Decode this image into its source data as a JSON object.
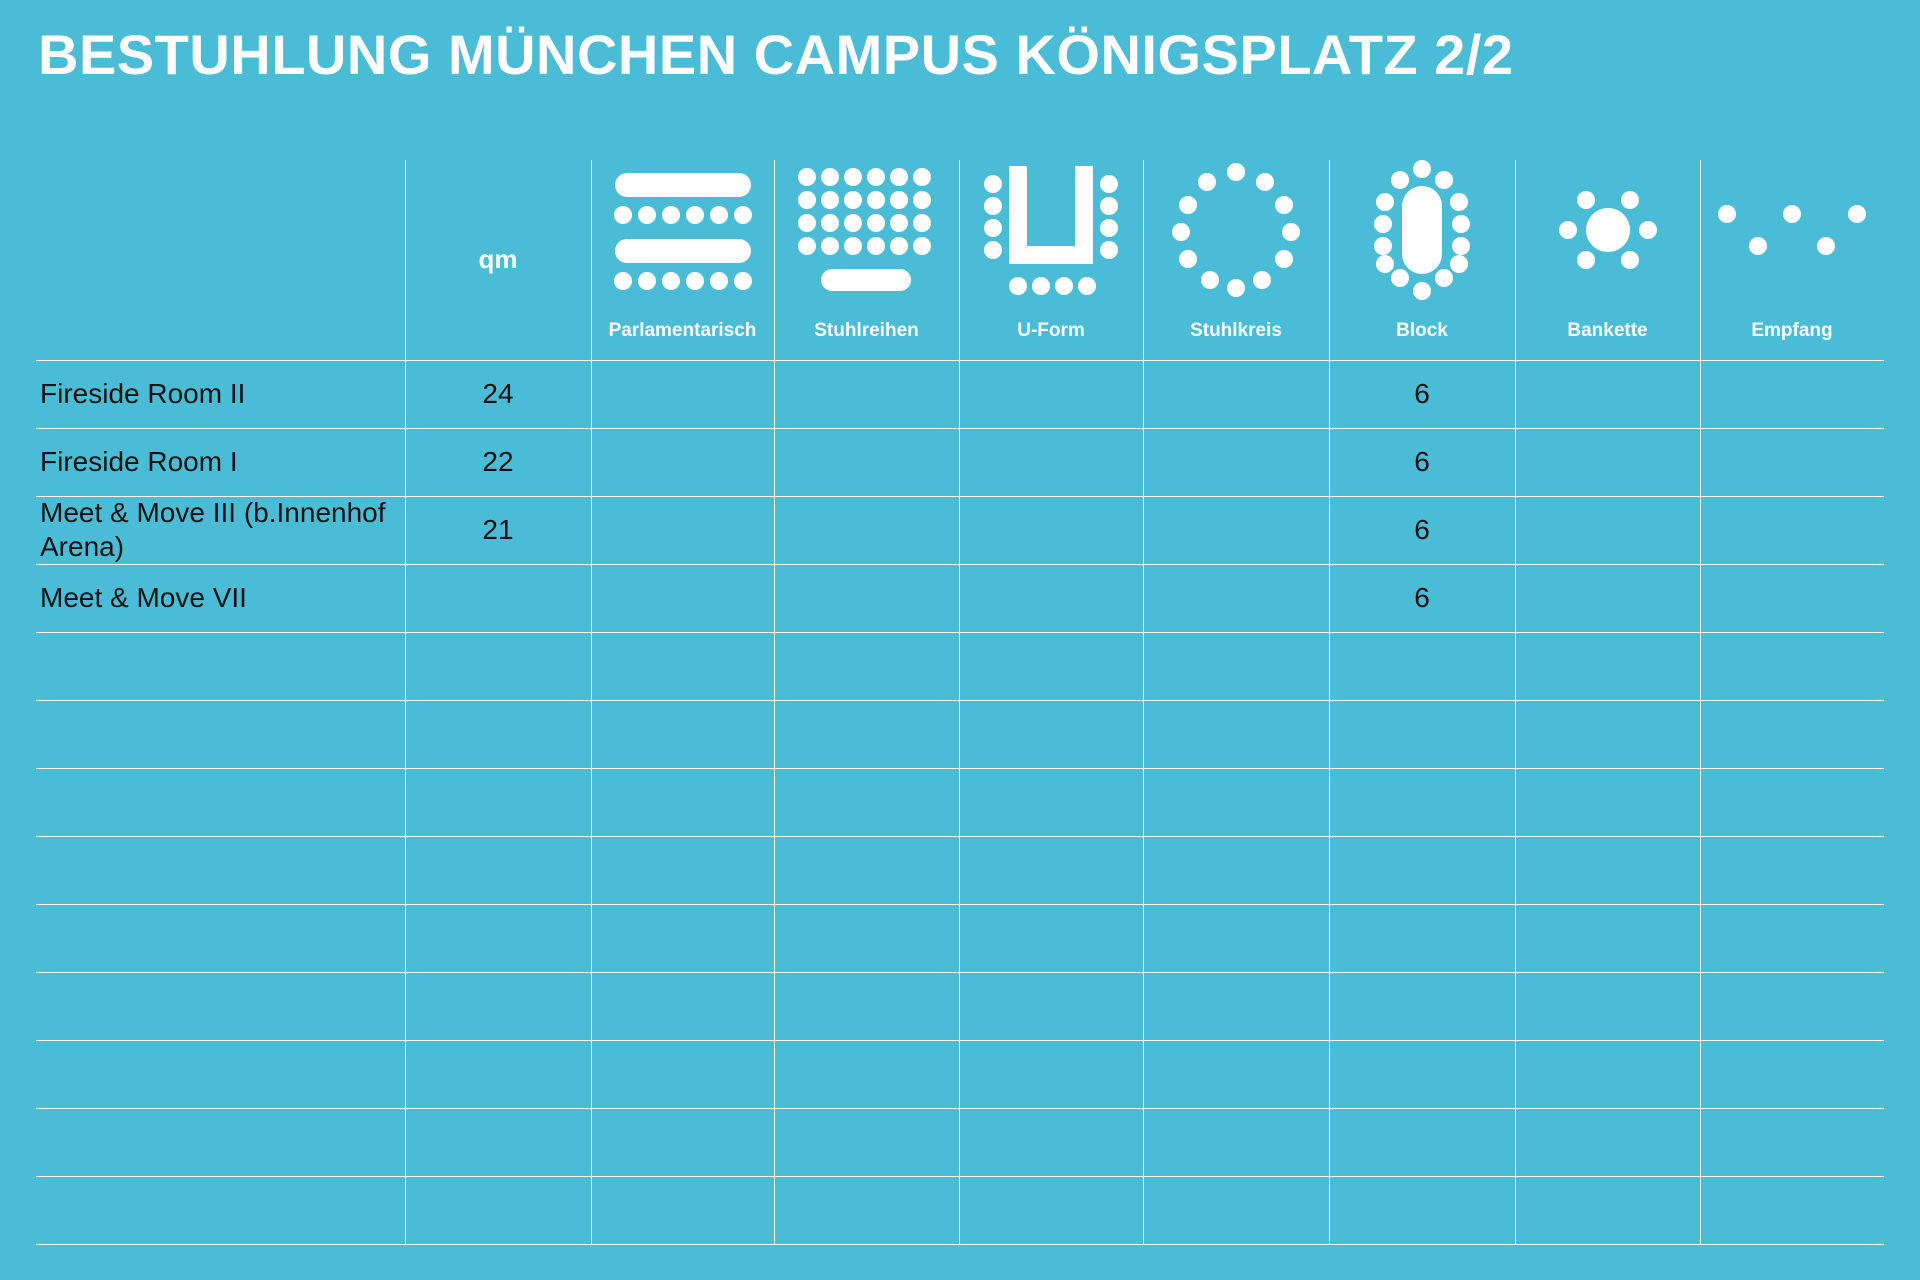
{
  "title": "BESTUHLUNG MÜNCHEN CAMPUS KÖNIGSPLATZ 2/2",
  "header": {
    "qm_label": "qm",
    "columns": [
      {
        "label": "Parlamentarisch",
        "icon": "parliament-seating-icon"
      },
      {
        "label": "Stuhlreihen",
        "icon": "chair-rows-icon"
      },
      {
        "label": "U-Form",
        "icon": "u-shape-icon"
      },
      {
        "label": "Stuhlkreis",
        "icon": "chair-circle-icon"
      },
      {
        "label": "Block",
        "icon": "block-table-icon"
      },
      {
        "label": "Bankette",
        "icon": "banquet-icon"
      },
      {
        "label": "Empfang",
        "icon": "reception-icon"
      }
    ]
  },
  "rows": [
    {
      "name": "Fireside Room II",
      "qm": "24",
      "values": [
        "",
        "",
        "",
        "",
        "6",
        "",
        ""
      ]
    },
    {
      "name": "Fireside Room I",
      "qm": "22",
      "values": [
        "",
        "",
        "",
        "",
        "6",
        "",
        ""
      ]
    },
    {
      "name": "Meet & Move III (b.Innenhof Arena)",
      "qm": "21",
      "values": [
        "",
        "",
        "",
        "",
        "6",
        "",
        ""
      ]
    },
    {
      "name": "Meet & Move VII",
      "qm": "",
      "values": [
        "",
        "",
        "",
        "",
        "6",
        "",
        ""
      ]
    },
    {
      "name": "",
      "qm": "",
      "values": [
        "",
        "",
        "",
        "",
        "",
        "",
        ""
      ]
    },
    {
      "name": "",
      "qm": "",
      "values": [
        "",
        "",
        "",
        "",
        "",
        "",
        ""
      ]
    },
    {
      "name": "",
      "qm": "",
      "values": [
        "",
        "",
        "",
        "",
        "",
        "",
        ""
      ]
    },
    {
      "name": "",
      "qm": "",
      "values": [
        "",
        "",
        "",
        "",
        "",
        "",
        ""
      ]
    },
    {
      "name": "",
      "qm": "",
      "values": [
        "",
        "",
        "",
        "",
        "",
        "",
        ""
      ]
    },
    {
      "name": "",
      "qm": "",
      "values": [
        "",
        "",
        "",
        "",
        "",
        "",
        ""
      ]
    },
    {
      "name": "",
      "qm": "",
      "values": [
        "",
        "",
        "",
        "",
        "",
        "",
        ""
      ]
    },
    {
      "name": "",
      "qm": "",
      "values": [
        "",
        "",
        "",
        "",
        "",
        "",
        ""
      ]
    },
    {
      "name": "",
      "qm": "",
      "values": [
        "",
        "",
        "",
        "",
        "",
        "",
        ""
      ]
    }
  ]
}
